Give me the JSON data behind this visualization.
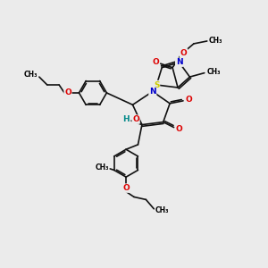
{
  "background_color": "#ebebeb",
  "figsize": [
    3.0,
    3.0
  ],
  "dpi": 100,
  "atom_colors": {
    "C": "#000000",
    "N": "#0000cc",
    "O": "#dd0000",
    "S": "#cccc00",
    "H": "#008888"
  },
  "bond_color": "#111111",
  "bond_width": 1.2,
  "font_size": 6.5,
  "xlim": [
    0,
    10
  ],
  "ylim": [
    0,
    10
  ]
}
